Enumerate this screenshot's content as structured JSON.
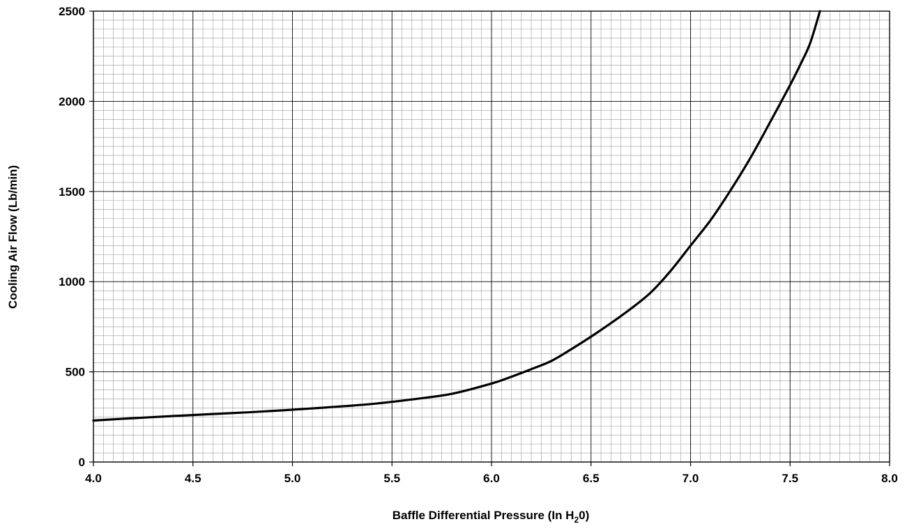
{
  "chart_data": {
    "type": "line",
    "title": "",
    "xlabel": "Baffle Differential Pressure (In H",
    "xlabel_subscript": "2",
    "xlabel_suffix": "0)",
    "ylabel": "Cooling Air Flow (Lb/min)",
    "xlim": [
      4.0,
      8.0
    ],
    "ylim": [
      0,
      2500
    ],
    "x_tick_labels": [
      "4.0",
      "4.5",
      "5.0",
      "5.5",
      "6.0",
      "6.5",
      "7.0",
      "7.5",
      "8.0"
    ],
    "y_tick_labels": [
      "0",
      "500",
      "1000",
      "1500",
      "2000",
      "2500"
    ],
    "grid": true,
    "line_color": "#000000",
    "series": [
      {
        "x": [
          4.0,
          4.2,
          4.4,
          4.6,
          4.8,
          5.0,
          5.2,
          5.4,
          5.6,
          5.8,
          6.0,
          6.1,
          6.2,
          6.3,
          6.4,
          6.5,
          6.6,
          6.7,
          6.8,
          6.9,
          7.0,
          7.1,
          7.2,
          7.3,
          7.4,
          7.5,
          7.55,
          7.6,
          7.65
        ],
        "y": [
          230,
          243,
          255,
          266,
          277,
          290,
          305,
          322,
          347,
          378,
          435,
          473,
          515,
          560,
          625,
          695,
          770,
          850,
          940,
          1060,
          1200,
          1340,
          1505,
          1685,
          1885,
          2090,
          2200,
          2320,
          2500
        ]
      }
    ]
  }
}
